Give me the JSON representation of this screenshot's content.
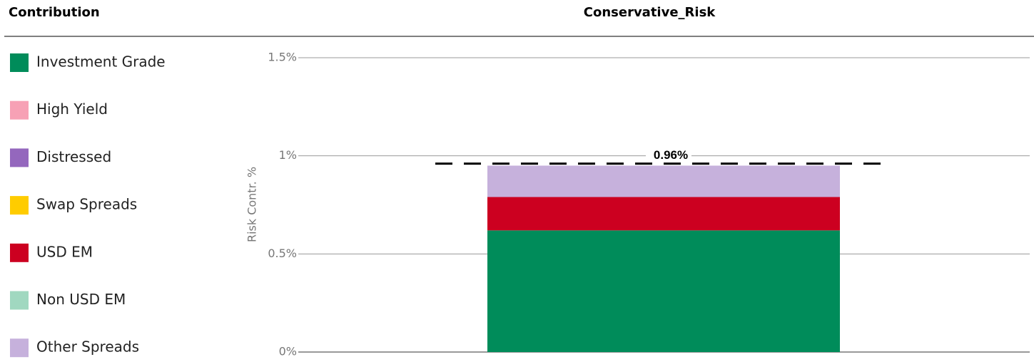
{
  "chart_data": {
    "type": "stacked_bar",
    "legend_title": "Contribution",
    "title": "Conservative_Risk",
    "y_label": "Risk Contr. %",
    "categories": [
      null
    ],
    "series": [
      {
        "name": "Investment Grade",
        "color": "#008c5a",
        "values": [
          0.62
        ]
      },
      {
        "name": "High Yield",
        "color": "#f7a1b5",
        "values": [
          0
        ]
      },
      {
        "name": "Distressed",
        "color": "#9467bd",
        "values": [
          0
        ]
      },
      {
        "name": "Swap Spreads",
        "color": "#ffcc00",
        "values": [
          0
        ]
      },
      {
        "name": "USD EM",
        "color": "#cc0020",
        "values": [
          0.17
        ]
      },
      {
        "name": "Non USD EM",
        "color": "#a0d8c0",
        "values": [
          0
        ]
      },
      {
        "name": "Other Spreads",
        "color": "#c6b1dc",
        "values": [
          0.16
        ]
      }
    ],
    "total": {
      "value": 0.96,
      "label": "0.96%"
    },
    "ylim": [
      0,
      1.5
    ],
    "yticks": [
      {
        "value": 0,
        "label": "0%"
      },
      {
        "value": 0.5,
        "label": "0.5%"
      },
      {
        "value": 1,
        "label": "1%"
      },
      {
        "value": 1.5,
        "label": "1.5%"
      }
    ],
    "grid": true,
    "legend": "left"
  }
}
